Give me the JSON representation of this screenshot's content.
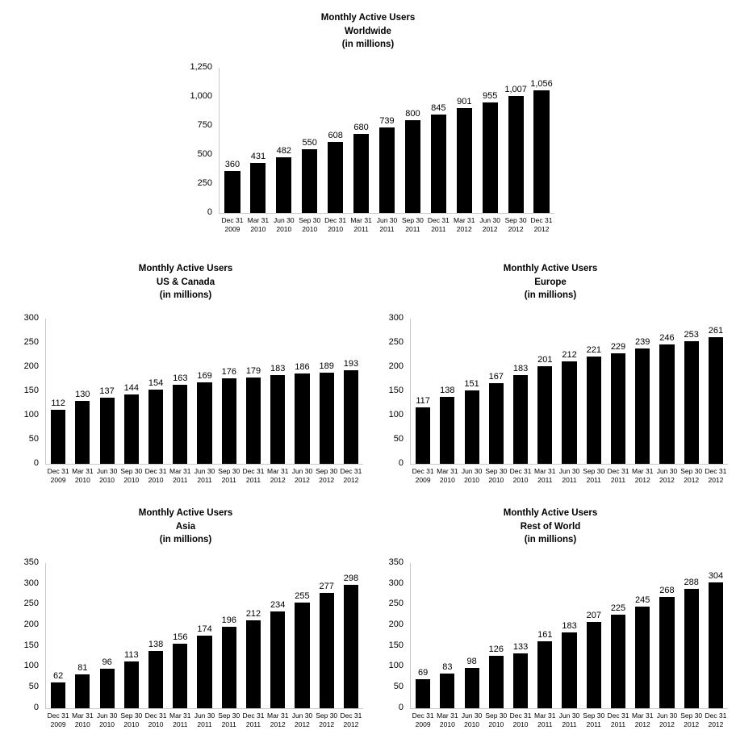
{
  "colors": {
    "bar": "#000000",
    "axis": "#c9c9c9",
    "text": "#000000",
    "background": "#ffffff"
  },
  "chart_data": [
    {
      "type": "bar",
      "title": "Monthly Active Users",
      "region": "Worldwide",
      "unit_label": "(in millions)",
      "ylim": [
        0,
        1250
      ],
      "ytick_step": 250,
      "grid": false,
      "legend": "none",
      "categories": [
        [
          "Dec 31",
          "2009"
        ],
        [
          "Mar 31",
          "2010"
        ],
        [
          "Jun 30",
          "2010"
        ],
        [
          "Sep 30",
          "2010"
        ],
        [
          "Dec 31",
          "2010"
        ],
        [
          "Mar 31",
          "2011"
        ],
        [
          "Jun 30",
          "2011"
        ],
        [
          "Sep 30",
          "2011"
        ],
        [
          "Dec 31",
          "2011"
        ],
        [
          "Mar 31",
          "2012"
        ],
        [
          "Jun 30",
          "2012"
        ],
        [
          "Sep 30",
          "2012"
        ],
        [
          "Dec 31",
          "2012"
        ]
      ],
      "values": [
        360,
        431,
        482,
        550,
        608,
        680,
        739,
        800,
        845,
        901,
        955,
        1007,
        1056
      ]
    },
    {
      "type": "bar",
      "title": "Monthly Active Users",
      "region": "US & Canada",
      "unit_label": "(in millions)",
      "ylim": [
        0,
        300
      ],
      "ytick_step": 50,
      "grid": false,
      "legend": "none",
      "categories": [
        [
          "Dec 31",
          "2009"
        ],
        [
          "Mar 31",
          "2010"
        ],
        [
          "Jun 30",
          "2010"
        ],
        [
          "Sep 30",
          "2010"
        ],
        [
          "Dec 31",
          "2010"
        ],
        [
          "Mar 31",
          "2011"
        ],
        [
          "Jun 30",
          "2011"
        ],
        [
          "Sep 30",
          "2011"
        ],
        [
          "Dec 31",
          "2011"
        ],
        [
          "Mar 31",
          "2012"
        ],
        [
          "Jun 30",
          "2012"
        ],
        [
          "Sep 30",
          "2012"
        ],
        [
          "Dec 31",
          "2012"
        ]
      ],
      "values": [
        112,
        130,
        137,
        144,
        154,
        163,
        169,
        176,
        179,
        183,
        186,
        189,
        193
      ]
    },
    {
      "type": "bar",
      "title": "Monthly Active Users",
      "region": "Europe",
      "unit_label": "(in millions)",
      "ylim": [
        0,
        300
      ],
      "ytick_step": 50,
      "grid": false,
      "legend": "none",
      "categories": [
        [
          "Dec 31",
          "2009"
        ],
        [
          "Mar 31",
          "2010"
        ],
        [
          "Jun 30",
          "2010"
        ],
        [
          "Sep 30",
          "2010"
        ],
        [
          "Dec 31",
          "2010"
        ],
        [
          "Mar 31",
          "2011"
        ],
        [
          "Jun 30",
          "2011"
        ],
        [
          "Sep 30",
          "2011"
        ],
        [
          "Dec 31",
          "2011"
        ],
        [
          "Mar 31",
          "2012"
        ],
        [
          "Jun 30",
          "2012"
        ],
        [
          "Sep 30",
          "2012"
        ],
        [
          "Dec 31",
          "2012"
        ]
      ],
      "values": [
        117,
        138,
        151,
        167,
        183,
        201,
        212,
        221,
        229,
        239,
        246,
        253,
        261
      ]
    },
    {
      "type": "bar",
      "title": "Monthly Active Users",
      "region": "Asia",
      "unit_label": "(in millions)",
      "ylim": [
        0,
        350
      ],
      "ytick_step": 50,
      "grid": false,
      "legend": "none",
      "categories": [
        [
          "Dec 31",
          "2009"
        ],
        [
          "Mar 31",
          "2010"
        ],
        [
          "Jun 30",
          "2010"
        ],
        [
          "Sep 30",
          "2010"
        ],
        [
          "Dec 31",
          "2010"
        ],
        [
          "Mar 31",
          "2011"
        ],
        [
          "Jun 30",
          "2011"
        ],
        [
          "Sep 30",
          "2011"
        ],
        [
          "Dec 31",
          "2011"
        ],
        [
          "Mar 31",
          "2012"
        ],
        [
          "Jun 30",
          "2012"
        ],
        [
          "Sep 30",
          "2012"
        ],
        [
          "Dec 31",
          "2012"
        ]
      ],
      "values": [
        62,
        81,
        96,
        113,
        138,
        156,
        174,
        196,
        212,
        234,
        255,
        277,
        298
      ]
    },
    {
      "type": "bar",
      "title": "Monthly Active Users",
      "region": "Rest of World",
      "unit_label": "(in millions)",
      "ylim": [
        0,
        350
      ],
      "ytick_step": 50,
      "grid": false,
      "legend": "none",
      "categories": [
        [
          "Dec 31",
          "2009"
        ],
        [
          "Mar 31",
          "2010"
        ],
        [
          "Jun 30",
          "2010"
        ],
        [
          "Sep 30",
          "2010"
        ],
        [
          "Dec 31",
          "2010"
        ],
        [
          "Mar 31",
          "2011"
        ],
        [
          "Jun 30",
          "2011"
        ],
        [
          "Sep 30",
          "2011"
        ],
        [
          "Dec 31",
          "2011"
        ],
        [
          "Mar 31",
          "2012"
        ],
        [
          "Jun 30",
          "2012"
        ],
        [
          "Sep 30",
          "2012"
        ],
        [
          "Dec 31",
          "2012"
        ]
      ],
      "values": [
        69,
        83,
        98,
        126,
        133,
        161,
        183,
        207,
        225,
        245,
        268,
        288,
        304
      ]
    }
  ]
}
